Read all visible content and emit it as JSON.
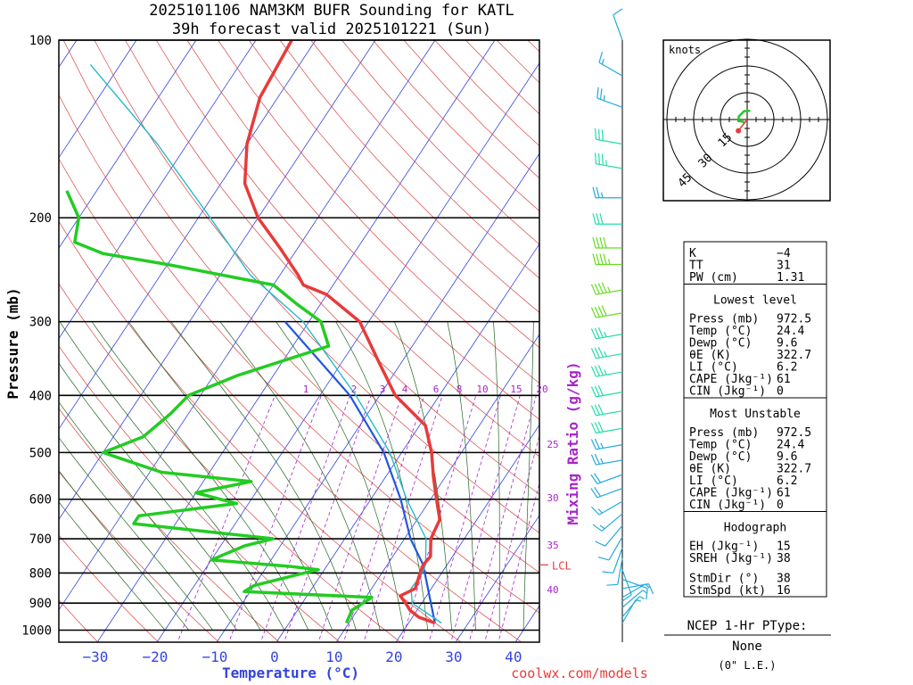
{
  "header": {
    "title_line1": "2025101106 NAM3KM BUFR Sounding for KATL",
    "title_line2": "39h forecast valid 2025101221 (Sun)"
  },
  "axes": {
    "xlabel": "Temperature (°C)",
    "ylabel": "Pressure (mb)",
    "mixing_ratio_label": "Mixing Ratio (g/kg)",
    "lcl_label": "LCL",
    "footer_url": "coolwx.com/models"
  },
  "chart_data": {
    "type": "line",
    "diagram": "skew-t log-p",
    "x_range_c": [
      -40,
      42
    ],
    "p_range_mb": [
      1060,
      100
    ],
    "pressure_ticks": [
      100,
      200,
      300,
      400,
      500,
      600,
      700,
      800,
      900,
      1000
    ],
    "temp_ticks": [
      -30,
      -20,
      -10,
      0,
      10,
      20,
      30,
      40
    ],
    "mixing_ratio_ticks": [
      "1",
      "2",
      "3",
      "4",
      "6",
      "8",
      "10",
      "15",
      "20",
      "25",
      "30",
      "35",
      "40"
    ],
    "lcl_pressure_mb": 775,
    "series": [
      {
        "name": "temperature",
        "color": "#e83a3a",
        "points": [
          [
            972.5,
            24.4
          ],
          [
            950,
            21
          ],
          [
            925,
            18.8
          ],
          [
            900,
            17.3
          ],
          [
            875,
            15.6
          ],
          [
            850,
            17.3
          ],
          [
            800,
            16.4
          ],
          [
            775,
            16
          ],
          [
            750,
            16.3
          ],
          [
            700,
            14.4
          ],
          [
            650,
            13.8
          ],
          [
            600,
            11
          ],
          [
            550,
            8
          ],
          [
            500,
            5
          ],
          [
            450,
            1
          ],
          [
            400,
            -7.4
          ],
          [
            350,
            -14
          ],
          [
            300,
            -21.5
          ],
          [
            270,
            -30
          ],
          [
            260,
            -35
          ],
          [
            250,
            -37
          ],
          [
            225,
            -43
          ],
          [
            200,
            -50
          ],
          [
            175,
            -56
          ],
          [
            150,
            -60
          ],
          [
            125,
            -63
          ],
          [
            100,
            -64
          ]
        ]
      },
      {
        "name": "dewpoint",
        "color": "#22cc22",
        "points": [
          [
            972.5,
            9.6
          ],
          [
            925,
            9.1
          ],
          [
            880,
            11
          ],
          [
            860,
            -11
          ],
          [
            840,
            -10
          ],
          [
            800,
            -3
          ],
          [
            790,
            -1
          ],
          [
            780,
            -6
          ],
          [
            760,
            -20
          ],
          [
            720,
            -16
          ],
          [
            700,
            -12
          ],
          [
            660,
            -37
          ],
          [
            640,
            -37
          ],
          [
            610,
            -22
          ],
          [
            585,
            -30
          ],
          [
            560,
            -22
          ],
          [
            540,
            -38
          ],
          [
            500,
            -50
          ],
          [
            470,
            -45
          ],
          [
            430,
            -43
          ],
          [
            400,
            -42
          ],
          [
            370,
            -36
          ],
          [
            330,
            -24
          ],
          [
            300,
            -28
          ],
          [
            280,
            -34
          ],
          [
            260,
            -40
          ],
          [
            240,
            -60
          ],
          [
            230,
            -72
          ],
          [
            220,
            -78
          ],
          [
            200,
            -80
          ],
          [
            180,
            -85
          ]
        ]
      },
      {
        "name": "parcel",
        "color": "#2255dd",
        "points": [
          [
            972.5,
            24.4
          ],
          [
            775,
            16
          ],
          [
            700,
            11
          ],
          [
            600,
            5
          ],
          [
            500,
            -3
          ],
          [
            400,
            -15
          ],
          [
            300,
            -34
          ]
        ]
      },
      {
        "name": "virtual_temp",
        "color": "#22bbcc",
        "points": [
          [
            972.5,
            25.5
          ],
          [
            900,
            18.4
          ],
          [
            850,
            16.6
          ],
          [
            800,
            16.8
          ],
          [
            775,
            16.4
          ],
          [
            700,
            13.6
          ],
          [
            600,
            6
          ],
          [
            500,
            -2
          ],
          [
            400,
            -14
          ],
          [
            300,
            -31
          ],
          [
            250,
            -45
          ],
          [
            200,
            -58
          ],
          [
            150,
            -75
          ],
          [
            110,
            -95
          ]
        ]
      }
    ]
  },
  "wind_barbs": [
    {
      "p": 100,
      "dir": 340,
      "spd": 10
    },
    {
      "p": 115,
      "dir": 300,
      "spd": 15
    },
    {
      "p": 130,
      "dir": 290,
      "spd": 25
    },
    {
      "p": 150,
      "dir": 280,
      "spd": 30
    },
    {
      "p": 165,
      "dir": 280,
      "spd": 35
    },
    {
      "p": 185,
      "dir": 270,
      "spd": 25
    },
    {
      "p": 205,
      "dir": 270,
      "spd": 30
    },
    {
      "p": 225,
      "dir": 270,
      "spd": 40
    },
    {
      "p": 240,
      "dir": 270,
      "spd": 45
    },
    {
      "p": 265,
      "dir": 260,
      "spd": 45
    },
    {
      "p": 290,
      "dir": 260,
      "spd": 40
    },
    {
      "p": 315,
      "dir": 260,
      "spd": 35
    },
    {
      "p": 340,
      "dir": 260,
      "spd": 35
    },
    {
      "p": 365,
      "dir": 260,
      "spd": 35
    },
    {
      "p": 395,
      "dir": 260,
      "spd": 30
    },
    {
      "p": 425,
      "dir": 260,
      "spd": 30
    },
    {
      "p": 455,
      "dir": 260,
      "spd": 30
    },
    {
      "p": 485,
      "dir": 260,
      "spd": 25
    },
    {
      "p": 515,
      "dir": 260,
      "spd": 25
    },
    {
      "p": 545,
      "dir": 250,
      "spd": 20
    },
    {
      "p": 575,
      "dir": 250,
      "spd": 20
    },
    {
      "p": 605,
      "dir": 240,
      "spd": 15
    },
    {
      "p": 635,
      "dir": 230,
      "spd": 15
    },
    {
      "p": 665,
      "dir": 220,
      "spd": 10
    },
    {
      "p": 695,
      "dir": 210,
      "spd": 10
    },
    {
      "p": 725,
      "dir": 200,
      "spd": 10
    },
    {
      "p": 755,
      "dir": 190,
      "spd": 10
    },
    {
      "p": 790,
      "dir": 160,
      "spd": 10
    },
    {
      "p": 820,
      "dir": 110,
      "spd": 10
    },
    {
      "p": 850,
      "dir": 80,
      "spd": 10
    },
    {
      "p": 880,
      "dir": 60,
      "spd": 5
    },
    {
      "p": 915,
      "dir": 50,
      "spd": 5
    },
    {
      "p": 950,
      "dir": 40,
      "spd": 5
    },
    {
      "p": 972.5,
      "dir": 30,
      "spd": 5
    }
  ],
  "hodograph": {
    "units_label": "knots",
    "ring_labels": [
      "15",
      "30",
      "45"
    ],
    "storm_motion": {
      "dir": 38,
      "spd": 16
    }
  },
  "indices": {
    "rows_top": [
      {
        "label": "K",
        "value": "−4"
      },
      {
        "label": "TT",
        "value": "31"
      },
      {
        "label": "PW (cm)",
        "value": "1.31"
      }
    ],
    "lowest_title": "Lowest level",
    "lowest": [
      {
        "label": "Press (mb)",
        "value": "972.5"
      },
      {
        "label": "Temp (°C)",
        "value": "24.4"
      },
      {
        "label": "Dewp (°C)",
        "value": "9.6"
      },
      {
        "label": "θE (K)",
        "value": "322.7"
      },
      {
        "label": "LI (°C)",
        "value": "6.2"
      },
      {
        "label": "CAPE (Jkg⁻¹)",
        "value": "61"
      },
      {
        "label": "CIN (Jkg⁻¹)",
        "value": "0"
      }
    ],
    "unstable_title": "Most Unstable",
    "unstable": [
      {
        "label": "Press (mb)",
        "value": "972.5"
      },
      {
        "label": "Temp (°C)",
        "value": "24.4"
      },
      {
        "label": "Dewp (°C)",
        "value": "9.6"
      },
      {
        "label": "θE (K)",
        "value": "322.7"
      },
      {
        "label": "LI (°C)",
        "value": "6.2"
      },
      {
        "label": "CAPE (Jkg⁻¹)",
        "value": "61"
      },
      {
        "label": "CIN (Jkg⁻¹)",
        "value": "0"
      }
    ],
    "hodo_title": "Hodograph",
    "hodo": [
      {
        "label": "EH (Jkg⁻¹)",
        "value": "15"
      },
      {
        "label": "SREH (Jkg⁻¹)",
        "value": "38"
      },
      {
        "label": "StmDir (°)",
        "value": "38"
      },
      {
        "label": "StmSpd (kt)",
        "value": "16"
      }
    ]
  },
  "ptype": {
    "title": "NCEP 1-Hr PType:",
    "value": "None",
    "snow": "(0\" L.E.)"
  },
  "colors": {
    "isobar": "#000000",
    "isotherm": "#3344dd",
    "dry_adiabat": "#dd4444",
    "moist_adiabat": "#226622",
    "mixing_ratio": "#aa22cc",
    "wind_barb": "#22aadd"
  }
}
